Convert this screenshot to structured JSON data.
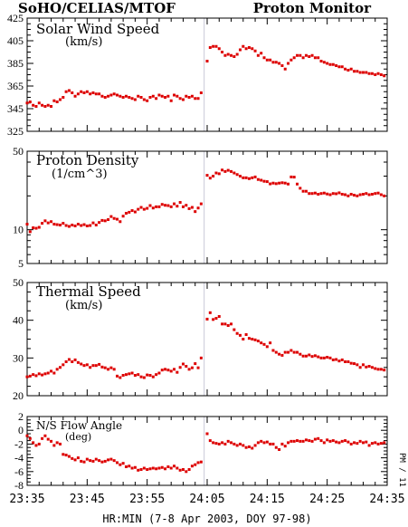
{
  "header": {
    "left": "SoHO/CELIAS/MTOF",
    "right": "Proton Monitor"
  },
  "side_label": "PM / 11",
  "colors": {
    "points": "#dd0000",
    "frame": "#000000",
    "gap_line": "#c8c8d8"
  },
  "chart_data": {
    "type": "scatter",
    "xlabel": "HR:MIN (7-8 Apr 2003, DOY 97-98)",
    "x_tick_labels": [
      "23:35",
      "23:45",
      "23:55",
      "24:05",
      "24:15",
      "24:25",
      "24:35"
    ],
    "x_tick_values_min": [
      0,
      10,
      20,
      30,
      40,
      50,
      60
    ],
    "xlim_min": [
      0,
      60
    ],
    "data_gap_at_min": 29.5,
    "panels": [
      {
        "id": "speed",
        "label_lines": [
          "Solar Wind Speed",
          "(km/s)"
        ],
        "scale": "linear",
        "ylim": [
          325,
          425
        ],
        "yticks": [
          325,
          345,
          365,
          385,
          405,
          425
        ],
        "ytick_labels": [
          "325",
          "345",
          "365",
          "385",
          "405",
          "425"
        ],
        "x": [
          0.0,
          0.5,
          1.0,
          1.5,
          2.0,
          2.5,
          3.0,
          3.5,
          4.0,
          4.5,
          5.0,
          5.5,
          6.0,
          6.5,
          7.0,
          7.5,
          8.0,
          8.5,
          9.0,
          9.5,
          10.0,
          10.5,
          11.0,
          11.5,
          12.0,
          12.5,
          13.0,
          13.5,
          14.0,
          14.5,
          15.0,
          15.5,
          16.0,
          16.5,
          17.0,
          17.5,
          18.0,
          18.5,
          19.0,
          19.5,
          20.0,
          20.5,
          21.0,
          21.5,
          22.0,
          22.5,
          23.0,
          23.5,
          24.0,
          24.5,
          25.0,
          25.5,
          26.0,
          26.5,
          27.0,
          27.5,
          28.0,
          28.5,
          29.0,
          30.0,
          30.5,
          31.0,
          31.5,
          32.0,
          32.5,
          33.0,
          33.5,
          34.0,
          34.5,
          35.0,
          35.5,
          36.0,
          36.5,
          37.0,
          37.5,
          38.0,
          38.5,
          39.0,
          39.5,
          40.0,
          40.5,
          41.0,
          41.5,
          42.0,
          42.5,
          43.0,
          43.5,
          44.0,
          44.5,
          45.0,
          45.5,
          46.0,
          46.5,
          47.0,
          47.5,
          48.0,
          48.5,
          49.0,
          49.5,
          50.0,
          50.5,
          51.0,
          51.5,
          52.0,
          52.5,
          53.0,
          53.5,
          54.0,
          54.5,
          55.0,
          55.5,
          56.0,
          56.5,
          57.0,
          57.5,
          58.0,
          58.5,
          59.0,
          59.5
        ],
        "y": [
          350.0,
          351.0,
          348.0,
          347.0,
          350.0,
          348.0,
          347.0,
          348.0,
          347.0,
          352.0,
          351.0,
          353.0,
          355.0,
          360.0,
          361.0,
          359.0,
          356.0,
          358.0,
          360.0,
          359.0,
          360.0,
          358.0,
          359.0,
          358.0,
          358.0,
          356.0,
          355.0,
          356.0,
          357.0,
          358.0,
          357.0,
          356.0,
          355.0,
          356.0,
          355.0,
          354.0,
          353.0,
          356.0,
          355.0,
          353.0,
          352.0,
          355.0,
          356.0,
          354.0,
          357.0,
          356.0,
          355.0,
          356.0,
          352.0,
          357.0,
          356.0,
          354.0,
          353.0,
          356.0,
          355.0,
          356.0,
          354.0,
          354.0,
          359.0,
          387.0,
          399.0,
          400.0,
          400.0,
          398.0,
          395.0,
          392.0,
          393.0,
          392.0,
          391.0,
          393.0,
          397.0,
          400.0,
          398.0,
          399.0,
          398.0,
          396.0,
          392.0,
          394.0,
          390.0,
          388.0,
          388.0,
          386.0,
          386.0,
          385.0,
          383.0,
          380.0,
          385.0,
          388.0,
          390.0,
          392.0,
          392.0,
          390.0,
          392.0,
          391.0,
          392.0,
          390.0,
          390.0,
          387.0,
          386.0,
          385.0,
          384.0,
          384.0,
          383.0,
          382.0,
          382.0,
          380.0,
          379.0,
          380.0,
          378.0,
          378.0,
          377.0,
          377.0,
          377.0,
          376.0,
          376.0,
          375.0,
          376.0,
          375.0,
          374.0
        ]
      },
      {
        "id": "density",
        "label_lines": [
          "Proton Density",
          "(1/cm^3)"
        ],
        "scale": "log",
        "ylim": [
          5,
          50
        ],
        "yticks": [
          5,
          10,
          50
        ],
        "ytick_labels": [
          "5",
          "10",
          "50"
        ],
        "x": [
          0.0,
          0.5,
          1.0,
          1.5,
          2.0,
          2.5,
          3.0,
          3.5,
          4.0,
          4.5,
          5.0,
          5.5,
          6.0,
          6.5,
          7.0,
          7.5,
          8.0,
          8.5,
          9.0,
          9.5,
          10.0,
          10.5,
          11.0,
          11.5,
          12.0,
          12.5,
          13.0,
          13.5,
          14.0,
          14.5,
          15.0,
          15.5,
          16.0,
          16.5,
          17.0,
          17.5,
          18.0,
          18.5,
          19.0,
          19.5,
          20.0,
          20.5,
          21.0,
          21.5,
          22.0,
          22.5,
          23.0,
          23.5,
          24.0,
          24.5,
          25.0,
          25.5,
          26.0,
          26.5,
          27.0,
          27.5,
          28.0,
          28.5,
          29.0,
          30.0,
          30.5,
          31.0,
          31.5,
          32.0,
          32.5,
          33.0,
          33.5,
          34.0,
          34.5,
          35.0,
          35.5,
          36.0,
          36.5,
          37.0,
          37.5,
          38.0,
          38.5,
          39.0,
          39.5,
          40.0,
          40.5,
          41.0,
          41.5,
          42.0,
          42.5,
          43.0,
          43.5,
          44.0,
          44.5,
          45.0,
          45.5,
          46.0,
          46.5,
          47.0,
          47.5,
          48.0,
          48.5,
          49.0,
          49.5,
          50.0,
          50.5,
          51.0,
          51.5,
          52.0,
          52.5,
          53.0,
          53.5,
          54.0,
          54.5,
          55.0,
          55.5,
          56.0,
          56.5,
          57.0,
          57.5,
          58.0,
          58.5,
          59.0,
          59.5
        ],
        "y": [
          11.2,
          9.6,
          10.4,
          10.3,
          10.5,
          11.4,
          12.0,
          11.5,
          11.8,
          11.2,
          11.1,
          11.0,
          11.4,
          10.9,
          10.7,
          11.0,
          10.8,
          11.2,
          10.9,
          11.1,
          10.8,
          10.9,
          11.5,
          11.0,
          11.6,
          12.1,
          12.0,
          12.3,
          13.1,
          12.6,
          12.4,
          11.8,
          13.2,
          14.0,
          14.3,
          14.8,
          14.4,
          15.2,
          15.8,
          15.2,
          15.5,
          16.4,
          15.6,
          16.0,
          16.0,
          16.8,
          16.5,
          16.4,
          16.0,
          17.0,
          16.2,
          17.5,
          16.0,
          16.5,
          15.4,
          15.8,
          14.5,
          15.6,
          17.0,
          30.5,
          28.8,
          30.0,
          32.0,
          31.5,
          34.0,
          33.0,
          33.8,
          33.0,
          32.0,
          31.0,
          30.0,
          29.0,
          29.0,
          28.5,
          29.0,
          29.5,
          28.0,
          27.6,
          27.0,
          26.8,
          25.6,
          26.0,
          25.7,
          26.0,
          26.2,
          26.0,
          25.5,
          29.5,
          29.4,
          25.5,
          23.4,
          22.0,
          22.0,
          21.0,
          21.0,
          21.2,
          20.7,
          21.0,
          21.2,
          20.8,
          20.5,
          21.0,
          20.9,
          21.3,
          20.7,
          20.5,
          20.0,
          20.7,
          20.3,
          20.0,
          20.5,
          20.7,
          21.0,
          20.5,
          20.7,
          21.0,
          21.2,
          20.5,
          20.0
        ]
      },
      {
        "id": "thermal",
        "label_lines": [
          "Thermal Speed",
          "(km/s)"
        ],
        "scale": "linear",
        "ylim": [
          20,
          50
        ],
        "yticks": [
          20,
          30,
          40,
          50
        ],
        "ytick_labels": [
          "20",
          "30",
          "40",
          "50"
        ],
        "x": [
          0.0,
          0.5,
          1.0,
          1.5,
          2.0,
          2.5,
          3.0,
          3.5,
          4.0,
          4.5,
          5.0,
          5.5,
          6.0,
          6.5,
          7.0,
          7.5,
          8.0,
          8.5,
          9.0,
          9.5,
          10.0,
          10.5,
          11.0,
          11.5,
          12.0,
          12.5,
          13.0,
          13.5,
          14.0,
          14.5,
          15.0,
          15.5,
          16.0,
          16.5,
          17.0,
          17.5,
          18.0,
          18.5,
          19.0,
          19.5,
          20.0,
          20.5,
          21.0,
          21.5,
          22.0,
          22.5,
          23.0,
          23.5,
          24.0,
          24.5,
          25.0,
          25.5,
          26.0,
          26.5,
          27.0,
          27.5,
          28.0,
          28.5,
          29.0,
          30.0,
          30.5,
          31.0,
          31.5,
          32.0,
          32.5,
          33.0,
          33.5,
          34.0,
          34.5,
          35.0,
          35.5,
          36.0,
          36.5,
          37.0,
          37.5,
          38.0,
          38.5,
          39.0,
          39.5,
          40.0,
          40.5,
          41.0,
          41.5,
          42.0,
          42.5,
          43.0,
          43.5,
          44.0,
          44.5,
          45.0,
          45.5,
          46.0,
          46.5,
          47.0,
          47.5,
          48.0,
          48.5,
          49.0,
          49.5,
          50.0,
          50.5,
          51.0,
          51.5,
          52.0,
          52.5,
          53.0,
          53.5,
          54.0,
          54.5,
          55.0,
          55.5,
          56.0,
          56.5,
          57.0,
          57.5,
          58.0,
          58.5,
          59.0,
          59.5
        ],
        "y": [
          25.0,
          25.2,
          25.6,
          25.3,
          25.8,
          25.5,
          25.8,
          26.0,
          26.5,
          26.0,
          27.0,
          27.5,
          28.2,
          29.0,
          29.6,
          29.0,
          29.5,
          28.8,
          28.4,
          28.0,
          28.2,
          27.5,
          28.0,
          28.0,
          28.3,
          27.6,
          27.4,
          27.0,
          27.4,
          27.0,
          25.2,
          24.8,
          25.4,
          25.6,
          25.8,
          26.0,
          25.4,
          25.6,
          25.0,
          24.8,
          25.5,
          25.4,
          25.0,
          25.6,
          26.0,
          26.8,
          27.0,
          26.8,
          26.5,
          27.0,
          26.2,
          27.5,
          28.4,
          27.8,
          27.0,
          27.4,
          28.5,
          27.4,
          30.0,
          40.3,
          42.0,
          40.2,
          40.5,
          41.0,
          39.0,
          39.0,
          38.6,
          39.0,
          37.5,
          36.5,
          36.0,
          35.0,
          36.2,
          35.2,
          35.0,
          34.8,
          34.5,
          34.0,
          33.6,
          33.0,
          34.0,
          32.0,
          31.5,
          31.0,
          30.7,
          31.5,
          31.5,
          32.0,
          31.5,
          31.5,
          31.0,
          30.5,
          30.5,
          30.8,
          30.4,
          30.6,
          30.3,
          30.0,
          30.0,
          30.2,
          30.0,
          29.5,
          29.6,
          29.2,
          29.5,
          29.0,
          29.0,
          28.6,
          28.5,
          28.2,
          27.5,
          28.2,
          27.6,
          27.8,
          27.5,
          27.2,
          27.0,
          27.0,
          26.8
        ]
      },
      {
        "id": "angle",
        "label_lines": [
          "N/S Flow Angle",
          "(deg)"
        ],
        "scale": "linear",
        "ylim": [
          -8,
          2
        ],
        "yticks": [
          -8,
          -6,
          -4,
          -2,
          0,
          2
        ],
        "ytick_labels": [
          "-8",
          "-6",
          "-4",
          "-2",
          "0",
          "2"
        ],
        "x": [
          0.0,
          0.5,
          1.0,
          1.5,
          2.0,
          2.5,
          3.0,
          3.5,
          4.0,
          4.5,
          5.0,
          5.5,
          6.0,
          6.5,
          7.0,
          7.5,
          8.0,
          8.5,
          9.0,
          9.5,
          10.0,
          10.5,
          11.0,
          11.5,
          12.0,
          12.5,
          13.0,
          13.5,
          14.0,
          14.5,
          15.0,
          15.5,
          16.0,
          16.5,
          17.0,
          17.5,
          18.0,
          18.5,
          19.0,
          19.5,
          20.0,
          20.5,
          21.0,
          21.5,
          22.0,
          22.5,
          23.0,
          23.5,
          24.0,
          24.5,
          25.0,
          25.5,
          26.0,
          26.5,
          27.0,
          27.5,
          28.0,
          28.5,
          29.0,
          30.0,
          30.5,
          31.0,
          31.5,
          32.0,
          32.5,
          33.0,
          33.5,
          34.0,
          34.5,
          35.0,
          35.5,
          36.0,
          36.5,
          37.0,
          37.5,
          38.0,
          38.5,
          39.0,
          39.5,
          40.0,
          40.5,
          41.0,
          41.5,
          42.0,
          42.5,
          43.0,
          43.5,
          44.0,
          44.5,
          45.0,
          45.5,
          46.0,
          46.5,
          47.0,
          47.5,
          48.0,
          48.5,
          49.0,
          49.5,
          50.0,
          50.5,
          51.0,
          51.5,
          52.0,
          52.5,
          53.0,
          53.5,
          54.0,
          54.5,
          55.0,
          55.5,
          56.0,
          56.5,
          57.0,
          57.5,
          58.0,
          58.5,
          59.0,
          59.5
        ],
        "y": [
          -0.8,
          -1.2,
          -1.8,
          -2.2,
          -2.0,
          -1.2,
          -0.8,
          -1.3,
          -1.6,
          -2.2,
          -1.8,
          -2.0,
          -3.5,
          -3.6,
          -3.8,
          -4.1,
          -4.3,
          -4.0,
          -4.5,
          -4.6,
          -4.2,
          -4.4,
          -4.5,
          -4.2,
          -4.4,
          -4.6,
          -4.5,
          -4.3,
          -4.2,
          -4.4,
          -4.7,
          -5.0,
          -4.8,
          -5.3,
          -5.2,
          -5.5,
          -5.4,
          -5.8,
          -5.7,
          -5.5,
          -5.7,
          -5.6,
          -5.5,
          -5.6,
          -5.5,
          -5.4,
          -5.6,
          -5.3,
          -5.5,
          -5.2,
          -5.5,
          -5.8,
          -5.7,
          -6.0,
          -5.7,
          -5.2,
          -5.0,
          -4.7,
          -4.6,
          -0.5,
          -1.5,
          -1.8,
          -1.9,
          -2.0,
          -1.8,
          -2.0,
          -1.6,
          -1.8,
          -2.0,
          -2.2,
          -2.0,
          -2.2,
          -2.5,
          -2.4,
          -2.6,
          -2.2,
          -1.8,
          -1.6,
          -1.8,
          -1.7,
          -2.0,
          -2.0,
          -2.5,
          -2.8,
          -2.0,
          -2.3,
          -1.8,
          -1.6,
          -1.6,
          -1.5,
          -1.6,
          -1.6,
          -1.4,
          -1.5,
          -1.6,
          -1.3,
          -1.2,
          -1.5,
          -1.8,
          -1.4,
          -1.6,
          -1.5,
          -1.7,
          -1.8,
          -1.6,
          -1.5,
          -1.7,
          -2.0,
          -1.8,
          -1.9,
          -1.6,
          -1.8,
          -1.7,
          -2.2,
          -1.9,
          -1.8,
          -2.0,
          -1.9,
          -1.8
        ]
      }
    ]
  }
}
